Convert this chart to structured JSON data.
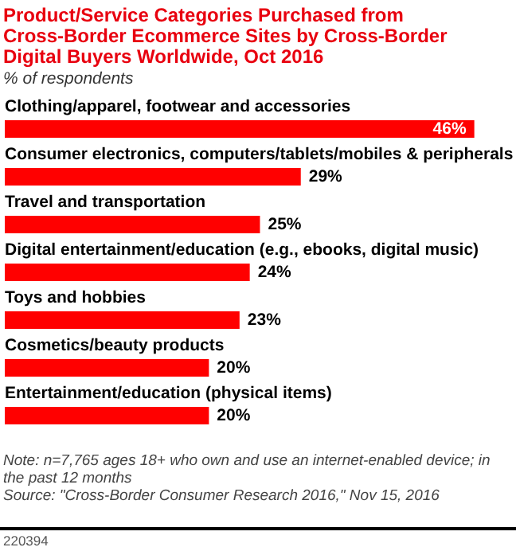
{
  "chart_data": {
    "type": "bar",
    "orientation": "horizontal",
    "title": "Product/Service Categories Purchased from Cross-Border Ecommerce Sites by Cross-Border Digital Buyers Worldwide, Oct 2016",
    "subtitle": "% of respondents",
    "categories": [
      "Clothing/apparel, footwear and accessories",
      "Consumer electronics, computers/tablets/mobiles & peripherals",
      "Travel and transportation",
      "Digital entertainment/education (e.g., ebooks, digital music)",
      "Toys and hobbies",
      "Cosmetics/beauty products",
      "Entertainment/education (physical items)"
    ],
    "values": [
      46,
      29,
      25,
      24,
      23,
      20,
      20
    ],
    "value_labels": [
      "46%",
      "29%",
      "25%",
      "24%",
      "23%",
      "20%",
      "20%"
    ],
    "color": "#ff0000",
    "annotations": [
      "Note: n=7,765 ages 18+ who own and use an internet-enabled device; in the past 12 months",
      "Source: \"Cross-Border Consumer Research 2016,\" Nov 15, 2016",
      "220394"
    ]
  }
}
